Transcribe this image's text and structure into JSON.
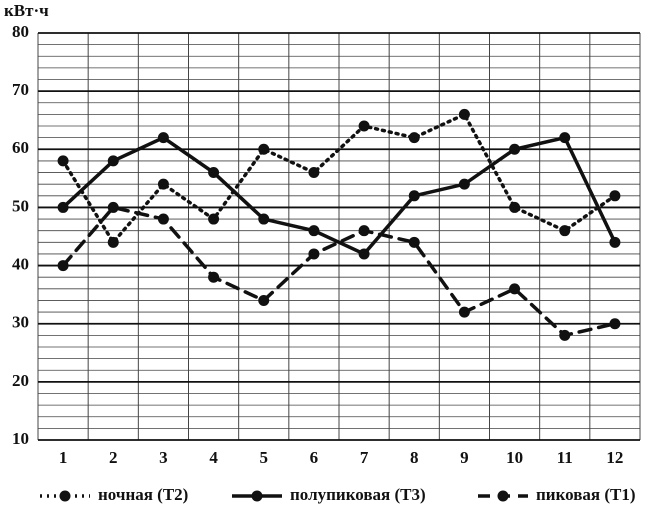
{
  "chart_data": {
    "type": "line",
    "y_label": "кВт·ч",
    "x": [
      1,
      2,
      3,
      4,
      5,
      6,
      7,
      8,
      9,
      10,
      11,
      12
    ],
    "xlim": [
      0.5,
      12.5
    ],
    "xticks": [
      1,
      2,
      3,
      4,
      5,
      6,
      7,
      8,
      9,
      10,
      11,
      12
    ],
    "ylim": [
      10,
      80
    ],
    "yticks": [
      10,
      20,
      30,
      40,
      50,
      60,
      70,
      80
    ],
    "grid": true,
    "legend": "bottom",
    "series": [
      {
        "name": "ночная (Т2)",
        "color": "#111111",
        "style": "dotted",
        "values": [
          58,
          44,
          54,
          48,
          60,
          56,
          64,
          62,
          66,
          50,
          46,
          52
        ]
      },
      {
        "name": "полупиковая (Т3)",
        "color": "#111111",
        "style": "solid",
        "values": [
          50,
          58,
          62,
          56,
          48,
          46,
          42,
          52,
          54,
          60,
          62,
          44
        ]
      },
      {
        "name": "пиковая (Т1)",
        "color": "#111111",
        "style": "dashed",
        "values": [
          40,
          50,
          48,
          38,
          34,
          42,
          46,
          44,
          32,
          36,
          28,
          30
        ]
      }
    ]
  }
}
